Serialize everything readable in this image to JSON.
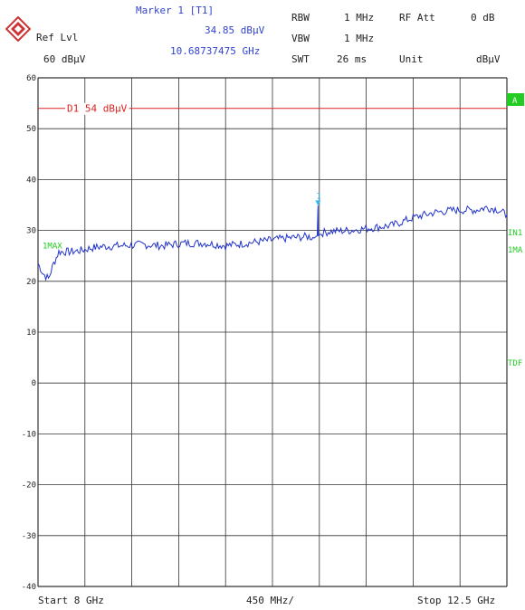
{
  "header": {
    "ref_lvl_label": "Ref Lvl",
    "ref_lvl_value": "60 dBµV",
    "marker_title": "Marker 1 [T1]",
    "marker_level": "34.85 dBµV",
    "marker_freq": "10.68737475 GHz",
    "rbw_label": "RBW",
    "rbw_value": "1 MHz",
    "vbw_label": "VBW",
    "vbw_value": "1 MHz",
    "swt_label": "SWT",
    "swt_value": "26 ms",
    "rfatt_label": "RF Att",
    "rfatt_value": "0 dB",
    "unit_label": "Unit",
    "unit_value": "dBµV"
  },
  "footer": {
    "start": "Start 8 GHz",
    "span": "450 MHz/",
    "stop": "Stop 12.5 GHz"
  },
  "side_labels": {
    "a": "A",
    "in1": "IN1",
    "ma1": "1MA",
    "tdf": "TDF",
    "trace_tag": "1MAX",
    "marker_tag": "1",
    "line_label": "D1  54 dBµV"
  },
  "colors": {
    "trace": "#2233cc",
    "limit_line": "#dd2222",
    "grid": "#333333",
    "green": "#22cc22",
    "marker": "#33bbee",
    "logo": "#cc3333"
  },
  "chart_data": {
    "type": "line",
    "title": "",
    "xlabel": "",
    "ylabel": "",
    "x_range_ghz": [
      8,
      12.5
    ],
    "x_per_div_mhz": 450,
    "ylim": [
      -40,
      60
    ],
    "y_ticks": [
      "60",
      "50",
      "40",
      "30",
      "20",
      "10",
      "0",
      "-10",
      "-20",
      "-30",
      "-40"
    ],
    "grid": true,
    "display_line": {
      "name": "D1",
      "value": 54
    },
    "marker": {
      "name": "T1",
      "x": 10.68737475,
      "y": 34.85
    },
    "series": [
      {
        "name": "1MAX",
        "x": [
          8.0,
          8.05,
          8.1,
          8.15,
          8.2,
          8.3,
          8.4,
          8.5,
          8.6,
          8.8,
          9.0,
          9.2,
          9.4,
          9.6,
          9.8,
          10.0,
          10.2,
          10.4,
          10.6,
          10.65,
          10.68,
          10.687,
          10.69,
          10.72,
          10.8,
          11.0,
          11.2,
          11.4,
          11.6,
          11.8,
          12.0,
          12.2,
          12.3,
          12.4,
          12.5
        ],
        "y": [
          23.5,
          21.5,
          20.5,
          23.5,
          25.8,
          25.8,
          26.0,
          26.5,
          26.8,
          27.0,
          27.2,
          27.0,
          27.5,
          27.5,
          27.0,
          27.5,
          28.0,
          28.5,
          28.8,
          28.5,
          29.0,
          34.85,
          29.0,
          29.5,
          29.8,
          30.0,
          30.5,
          31.0,
          32.5,
          33.5,
          34.0,
          34.0,
          34.5,
          34.2,
          33.0
        ]
      }
    ]
  }
}
